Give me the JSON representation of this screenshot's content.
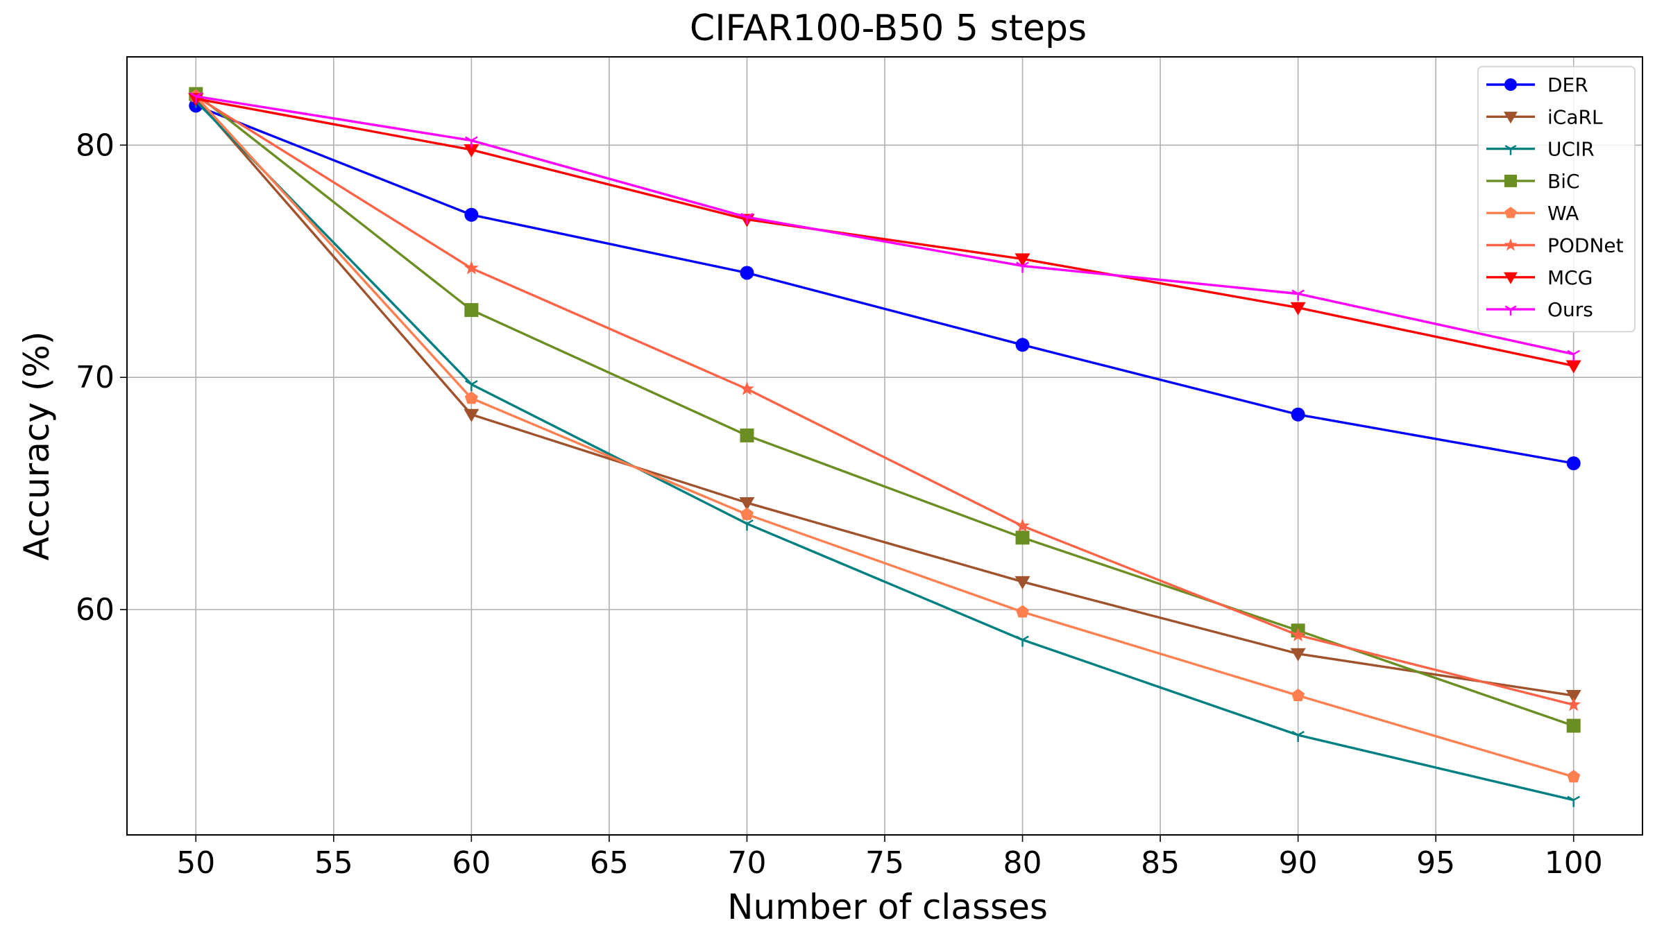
{
  "chart_data": {
    "type": "line",
    "title": "CIFAR100-B50 5 steps",
    "xlabel": "Number of classes",
    "ylabel": "Accuracy (%)",
    "xlim": [
      47.5,
      102.5
    ],
    "ylim": [
      50.3,
      83.8
    ],
    "x": [
      50,
      60,
      70,
      80,
      90,
      100
    ],
    "xticks": [
      50,
      55,
      60,
      65,
      70,
      75,
      80,
      85,
      90,
      95,
      100
    ],
    "yticks": [
      60,
      70,
      80
    ],
    "grid": true,
    "legend_position": "top-right",
    "series": [
      {
        "name": "DER",
        "color": "#0000ff",
        "marker": "circle",
        "values": [
          81.7,
          77.0,
          74.5,
          71.4,
          68.4,
          66.3
        ]
      },
      {
        "name": "iCaRL",
        "color": "#a0522d",
        "marker": "triangle-down",
        "values": [
          82.0,
          68.4,
          64.6,
          61.2,
          58.1,
          56.3
        ]
      },
      {
        "name": "UCIR",
        "color": "#008080",
        "marker": "tri-down",
        "values": [
          81.9,
          69.7,
          63.7,
          58.7,
          54.6,
          51.8
        ]
      },
      {
        "name": "BiC",
        "color": "#6b8e23",
        "marker": "square",
        "values": [
          82.2,
          72.9,
          67.5,
          63.1,
          59.1,
          55.0
        ]
      },
      {
        "name": "WA",
        "color": "#ff7f50",
        "marker": "pentagon",
        "values": [
          82.1,
          69.1,
          64.1,
          59.9,
          56.3,
          52.8
        ]
      },
      {
        "name": "PODNet",
        "color": "#ff6347",
        "marker": "star",
        "values": [
          82.1,
          74.7,
          69.5,
          63.6,
          58.9,
          55.9
        ]
      },
      {
        "name": "MCG",
        "color": "#ff0000",
        "marker": "triangle-down",
        "values": [
          82.0,
          79.8,
          76.8,
          75.1,
          73.0,
          70.5
        ]
      },
      {
        "name": "Ours",
        "color": "#ff00ff",
        "marker": "tri-down",
        "values": [
          82.1,
          80.2,
          76.9,
          74.8,
          73.6,
          71.0
        ]
      }
    ]
  }
}
